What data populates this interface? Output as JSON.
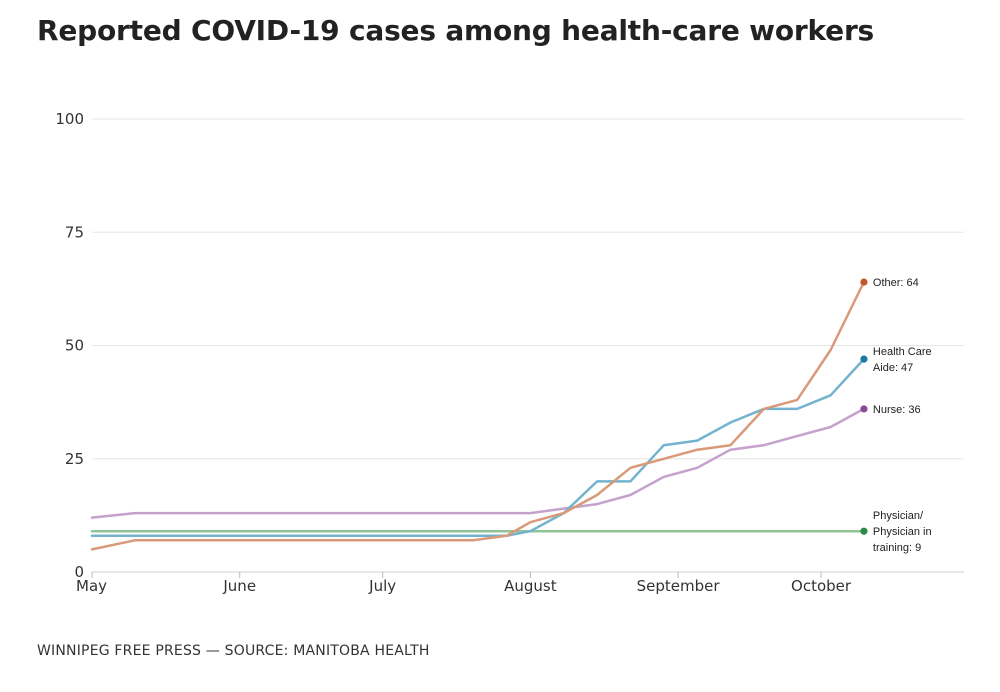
{
  "header": {
    "title": "Reported COVID-19 cases among health-care workers"
  },
  "footer": {
    "source": "WINNIPEG FREE PRESS — SOURCE: MANITOBA HEALTH"
  },
  "chart_data": {
    "type": "line",
    "title": "Reported COVID-19 cases among health-care workers",
    "xlabel": "",
    "ylabel": "",
    "x_ticks": [
      "May",
      "June",
      "July",
      "August",
      "September",
      "October"
    ],
    "x_tick_dates": [
      "2020-05-01",
      "2020-06-01",
      "2020-07-01",
      "2020-08-01",
      "2020-09-01",
      "2020-10-01"
    ],
    "xlim": [
      "2020-05-01",
      "2020-10-31"
    ],
    "ylim": [
      0,
      100
    ],
    "y_ticks": [
      0,
      25,
      50,
      75,
      100
    ],
    "grid": "horizontal",
    "x": [
      "2020-05-01",
      "2020-05-10",
      "2020-06-20",
      "2020-07-20",
      "2020-07-27",
      "2020-08-01",
      "2020-08-08",
      "2020-08-15",
      "2020-08-22",
      "2020-08-29",
      "2020-09-05",
      "2020-09-12",
      "2020-09-19",
      "2020-09-26",
      "2020-10-03",
      "2020-10-10",
      "2020-10-17",
      "2020-10-24"
    ],
    "series": [
      {
        "name": "Other",
        "color": "#d99a7a",
        "dot_color": "#c0562a",
        "end_label": "Other: 64",
        "values": [
          5,
          7,
          7,
          7,
          8,
          11,
          13,
          17,
          23,
          25,
          27,
          28,
          36,
          38,
          49,
          64
        ],
        "x": [
          "2020-05-01",
          "2020-05-10",
          "2020-06-20",
          "2020-07-20",
          "2020-07-27",
          "2020-08-01",
          "2020-08-08",
          "2020-08-15",
          "2020-08-22",
          "2020-08-29",
          "2020-09-05",
          "2020-09-12",
          "2020-09-19",
          "2020-09-26",
          "2020-10-03",
          "2020-10-10"
        ]
      },
      {
        "name": "Health Care Aide",
        "color": "#74b3cf",
        "dot_color": "#1a7aa6",
        "end_label": "Health Care Aide: 47",
        "values": [
          8,
          8,
          8,
          9,
          13,
          20,
          20,
          28,
          29,
          33,
          36,
          36,
          39,
          47
        ],
        "x": [
          "2020-05-01",
          "2020-07-20",
          "2020-07-27",
          "2020-08-01",
          "2020-08-08",
          "2020-08-15",
          "2020-08-22",
          "2020-08-29",
          "2020-09-05",
          "2020-09-12",
          "2020-09-19",
          "2020-09-26",
          "2020-10-03",
          "2020-10-10"
        ]
      },
      {
        "name": "Nurse",
        "color": "#c5a2cc",
        "dot_color": "#8a4a98",
        "end_label": "Nurse: 36",
        "values": [
          12,
          13,
          13,
          13,
          14,
          15,
          17,
          21,
          23,
          27,
          28,
          30,
          32,
          36
        ],
        "x": [
          "2020-05-01",
          "2020-05-10",
          "2020-07-27",
          "2020-08-01",
          "2020-08-08",
          "2020-08-15",
          "2020-08-22",
          "2020-08-29",
          "2020-09-05",
          "2020-09-12",
          "2020-09-19",
          "2020-09-26",
          "2020-10-03",
          "2020-10-10"
        ]
      },
      {
        "name": "Physician/ Physician in training",
        "color": "#8fc497",
        "dot_color": "#2e8a46",
        "end_label": "Physician/ Physician in training: 9",
        "values": [
          9,
          9
        ],
        "x": [
          "2020-05-01",
          "2020-10-10"
        ]
      }
    ],
    "end_label_lines": [
      [
        "Other: 64"
      ],
      [
        "Health Care",
        "Aide: 47"
      ],
      [
        "Nurse: 36"
      ],
      [
        "Physician/",
        "Physician in",
        "training: 9"
      ]
    ]
  }
}
